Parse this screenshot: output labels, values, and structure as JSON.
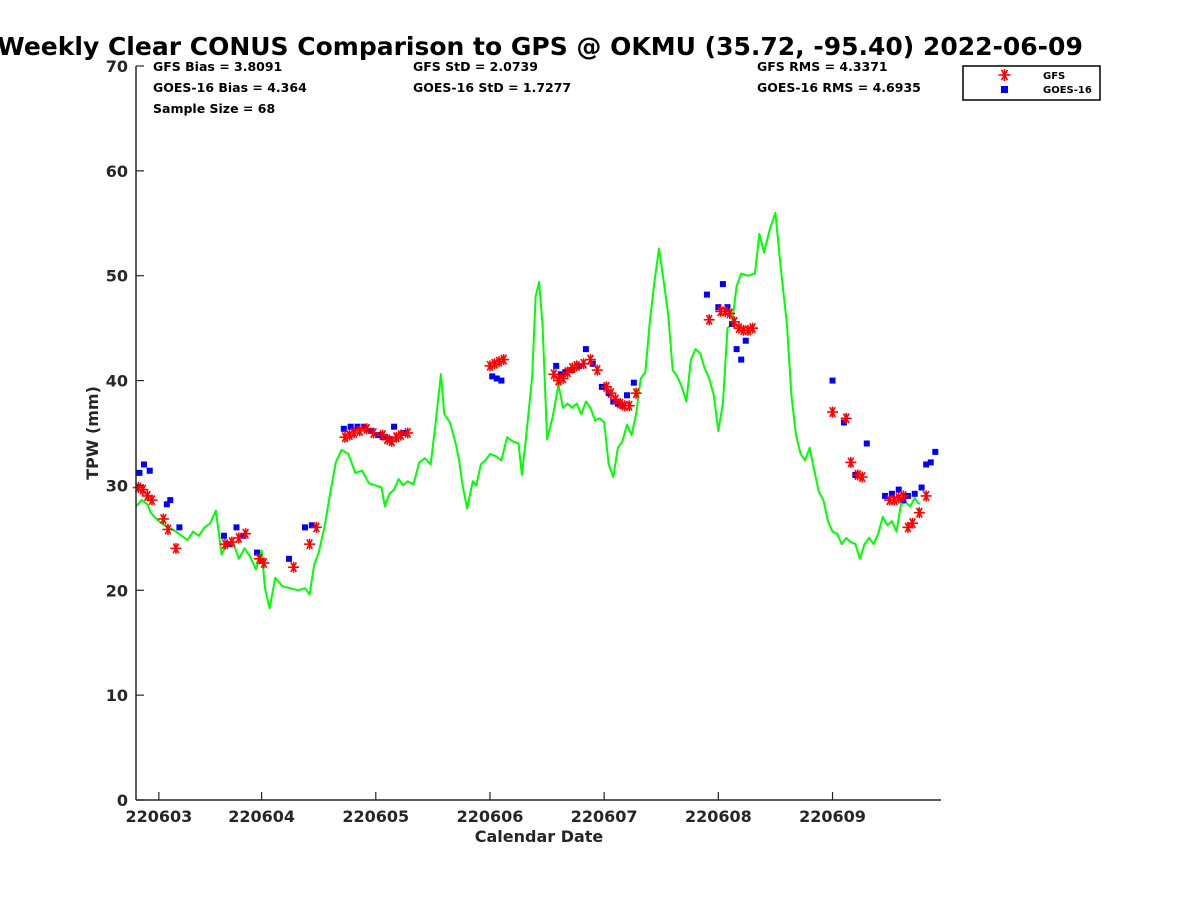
{
  "chart_data": {
    "type": "line",
    "title": "Weekly Clear CONUS Comparison to GPS @ OKMU (35.72, -95.40) 2022-06-09",
    "xlabel": "Calendar Date",
    "ylabel": "TPW (mm)",
    "ylim": [
      0,
      70
    ],
    "y_ticks": [
      0,
      10,
      20,
      30,
      40,
      50,
      60,
      70
    ],
    "x_ticks": [
      {
        "x": 0.1,
        "label": "220603"
      },
      {
        "x": 1.0,
        "label": "220604"
      },
      {
        "x": 2.0,
        "label": "220605"
      },
      {
        "x": 3.0,
        "label": "220606"
      },
      {
        "x": 4.0,
        "label": "220607"
      },
      {
        "x": 5.0,
        "label": "220608"
      },
      {
        "x": 6.0,
        "label": "220609"
      }
    ],
    "xlim": [
      -0.1,
      6.95
    ],
    "grid": false,
    "legend_placement": "top-right",
    "stats": {
      "gfs_bias": "GFS Bias = 3.8091",
      "goes_bias": "GOES-16 Bias = 4.364",
      "sample_size": "Sample Size = 68",
      "gfs_std": "GFS StD = 2.0739",
      "goes_std": "GOES-16 StD = 1.7277",
      "gfs_rms": "GFS RMS = 4.3371",
      "goes_rms": "GOES-16 RMS = 4.6935"
    },
    "legend": [
      {
        "name": "GFS",
        "marker": "asterisk",
        "color": "#ff0000"
      },
      {
        "name": "GOES-16",
        "marker": "square",
        "color": "#0000ff"
      }
    ],
    "series": [
      {
        "name": "GPS",
        "color": "#00ff00",
        "points": [
          [
            -0.1,
            28
          ],
          [
            -0.05,
            28.6
          ],
          [
            0.0,
            28.2
          ],
          [
            0.03,
            27.4
          ],
          [
            0.06,
            27.0
          ],
          [
            0.1,
            26.6
          ],
          [
            0.15,
            26.2
          ],
          [
            0.2,
            25.9
          ],
          [
            0.25,
            25.6
          ],
          [
            0.3,
            25.2
          ],
          [
            0.35,
            24.8
          ],
          [
            0.4,
            25.6
          ],
          [
            0.45,
            25.2
          ],
          [
            0.5,
            26.0
          ],
          [
            0.55,
            26.4
          ],
          [
            0.6,
            27.6
          ],
          [
            0.65,
            23.4
          ],
          [
            0.7,
            24.5
          ],
          [
            0.75,
            24.6
          ],
          [
            0.8,
            23.0
          ],
          [
            0.85,
            24.0
          ],
          [
            0.9,
            23.2
          ],
          [
            0.95,
            22.0
          ],
          [
            1.0,
            23.8
          ],
          [
            1.03,
            20.2
          ],
          [
            1.07,
            18.3
          ],
          [
            1.12,
            21.2
          ],
          [
            1.18,
            20.4
          ],
          [
            1.25,
            20.2
          ],
          [
            1.32,
            20.0
          ],
          [
            1.38,
            20.2
          ],
          [
            1.42,
            19.6
          ],
          [
            1.46,
            22.4
          ],
          [
            1.5,
            23.6
          ],
          [
            1.55,
            26.0
          ],
          [
            1.6,
            29.2
          ],
          [
            1.65,
            32.2
          ],
          [
            1.7,
            33.4
          ],
          [
            1.76,
            33.0
          ],
          [
            1.82,
            31.2
          ],
          [
            1.88,
            31.4
          ],
          [
            1.94,
            30.2
          ],
          [
            2.0,
            30.0
          ],
          [
            2.05,
            29.8
          ],
          [
            2.08,
            28.0
          ],
          [
            2.12,
            29.2
          ],
          [
            2.16,
            29.6
          ],
          [
            2.2,
            30.6
          ],
          [
            2.24,
            30.0
          ],
          [
            2.28,
            30.4
          ],
          [
            2.33,
            30.1
          ],
          [
            2.38,
            32.2
          ],
          [
            2.43,
            32.6
          ],
          [
            2.48,
            32.0
          ],
          [
            2.52,
            35.6
          ],
          [
            2.57,
            40.6
          ],
          [
            2.6,
            36.8
          ],
          [
            2.65,
            36.0
          ],
          [
            2.7,
            34.0
          ],
          [
            2.73,
            32.4
          ],
          [
            2.76,
            30.0
          ],
          [
            2.8,
            27.8
          ],
          [
            2.85,
            30.4
          ],
          [
            2.88,
            30.0
          ],
          [
            2.92,
            32.0
          ],
          [
            2.96,
            32.4
          ],
          [
            3.0,
            33.0
          ],
          [
            3.05,
            32.8
          ],
          [
            3.1,
            32.4
          ],
          [
            3.15,
            34.6
          ],
          [
            3.2,
            34.2
          ],
          [
            3.25,
            34.0
          ],
          [
            3.28,
            31.0
          ],
          [
            3.32,
            35.0
          ],
          [
            3.37,
            40.4
          ],
          [
            3.4,
            48.0
          ],
          [
            3.43,
            49.4
          ],
          [
            3.46,
            45.4
          ],
          [
            3.5,
            34.4
          ],
          [
            3.55,
            36.6
          ],
          [
            3.6,
            39.6
          ],
          [
            3.64,
            37.4
          ],
          [
            3.68,
            37.8
          ],
          [
            3.72,
            37.4
          ],
          [
            3.76,
            37.8
          ],
          [
            3.8,
            36.8
          ],
          [
            3.84,
            38.0
          ],
          [
            3.88,
            37.4
          ],
          [
            3.92,
            36.2
          ],
          [
            3.96,
            36.4
          ],
          [
            4.0,
            36.0
          ],
          [
            4.04,
            32.0
          ],
          [
            4.08,
            30.8
          ],
          [
            4.12,
            33.6
          ],
          [
            4.16,
            34.2
          ],
          [
            4.2,
            35.8
          ],
          [
            4.24,
            34.8
          ],
          [
            4.28,
            36.8
          ],
          [
            4.32,
            40.2
          ],
          [
            4.36,
            40.8
          ],
          [
            4.4,
            45.6
          ],
          [
            4.44,
            49.4
          ],
          [
            4.48,
            52.6
          ],
          [
            4.52,
            49.6
          ],
          [
            4.56,
            46.4
          ],
          [
            4.6,
            41.0
          ],
          [
            4.64,
            40.4
          ],
          [
            4.68,
            39.4
          ],
          [
            4.72,
            38.0
          ],
          [
            4.76,
            42.0
          ],
          [
            4.8,
            43.0
          ],
          [
            4.84,
            42.6
          ],
          [
            4.88,
            41.2
          ],
          [
            4.92,
            40.2
          ],
          [
            4.96,
            38.6
          ],
          [
            5.0,
            35.2
          ],
          [
            5.04,
            37.8
          ],
          [
            5.08,
            45.0
          ],
          [
            5.12,
            45.4
          ],
          [
            5.16,
            49.0
          ],
          [
            5.2,
            50.2
          ],
          [
            5.26,
            50.0
          ],
          [
            5.32,
            50.2
          ],
          [
            5.36,
            54.0
          ],
          [
            5.4,
            52.2
          ],
          [
            5.45,
            54.4
          ],
          [
            5.5,
            56.0
          ],
          [
            5.55,
            50.4
          ],
          [
            5.6,
            45.4
          ],
          [
            5.64,
            38.6
          ],
          [
            5.68,
            34.8
          ],
          [
            5.72,
            33.0
          ],
          [
            5.76,
            32.4
          ],
          [
            5.8,
            33.6
          ],
          [
            5.84,
            31.4
          ],
          [
            5.88,
            29.4
          ],
          [
            5.92,
            28.6
          ],
          [
            5.96,
            26.6
          ],
          [
            6.0,
            25.6
          ],
          [
            6.04,
            25.4
          ],
          [
            6.08,
            24.4
          ],
          [
            6.12,
            25.0
          ],
          [
            6.16,
            24.6
          ],
          [
            6.2,
            24.4
          ],
          [
            6.24,
            23.0
          ],
          [
            6.28,
            24.4
          ],
          [
            6.32,
            25.0
          ],
          [
            6.36,
            24.4
          ],
          [
            6.4,
            25.4
          ],
          [
            6.44,
            27.0
          ],
          [
            6.48,
            26.2
          ],
          [
            6.52,
            26.6
          ],
          [
            6.56,
            25.6
          ],
          [
            6.6,
            28.2
          ],
          [
            6.64,
            28.4
          ],
          [
            6.68,
            28.0
          ],
          [
            6.72,
            28.8
          ],
          [
            6.76,
            28.2
          ]
        ]
      },
      {
        "name": "GFS",
        "marker": "asterisk",
        "color": "#ff0000",
        "points": [
          [
            -0.08,
            29.8
          ],
          [
            -0.04,
            29.6
          ],
          [
            0.0,
            29.0
          ],
          [
            0.04,
            28.6
          ],
          [
            0.14,
            26.8
          ],
          [
            0.18,
            25.8
          ],
          [
            0.25,
            24.0
          ],
          [
            0.68,
            24.4
          ],
          [
            0.74,
            24.6
          ],
          [
            0.8,
            25.0
          ],
          [
            0.86,
            25.4
          ],
          [
            0.98,
            23.0
          ],
          [
            1.02,
            22.6
          ],
          [
            1.28,
            22.2
          ],
          [
            1.42,
            24.4
          ],
          [
            1.48,
            26.0
          ],
          [
            1.73,
            34.6
          ],
          [
            1.77,
            34.8
          ],
          [
            1.81,
            35.0
          ],
          [
            1.86,
            35.2
          ],
          [
            1.92,
            35.4
          ],
          [
            1.98,
            35.0
          ],
          [
            2.06,
            34.8
          ],
          [
            2.1,
            34.4
          ],
          [
            2.14,
            34.2
          ],
          [
            2.18,
            34.6
          ],
          [
            2.22,
            34.8
          ],
          [
            2.28,
            35.0
          ],
          [
            3.0,
            41.4
          ],
          [
            3.04,
            41.6
          ],
          [
            3.08,
            41.8
          ],
          [
            3.12,
            42.0
          ],
          [
            3.56,
            40.6
          ],
          [
            3.6,
            40.0
          ],
          [
            3.64,
            40.2
          ],
          [
            3.68,
            40.8
          ],
          [
            3.72,
            41.2
          ],
          [
            3.76,
            41.4
          ],
          [
            3.82,
            41.6
          ],
          [
            3.88,
            42.0
          ],
          [
            3.94,
            41.0
          ],
          [
            4.02,
            39.4
          ],
          [
            4.06,
            38.8
          ],
          [
            4.1,
            38.2
          ],
          [
            4.14,
            37.8
          ],
          [
            4.18,
            37.6
          ],
          [
            4.22,
            37.6
          ],
          [
            4.28,
            38.8
          ],
          [
            4.92,
            45.8
          ],
          [
            5.02,
            46.6
          ],
          [
            5.06,
            46.6
          ],
          [
            5.1,
            46.4
          ],
          [
            5.14,
            45.6
          ],
          [
            5.18,
            45.0
          ],
          [
            5.22,
            44.8
          ],
          [
            5.26,
            44.8
          ],
          [
            5.3,
            45.0
          ],
          [
            6.0,
            37.0
          ],
          [
            6.12,
            36.4
          ],
          [
            6.16,
            32.2
          ],
          [
            6.22,
            31.0
          ],
          [
            6.26,
            30.8
          ],
          [
            6.5,
            28.6
          ],
          [
            6.54,
            28.6
          ],
          [
            6.58,
            28.8
          ],
          [
            6.62,
            29.0
          ],
          [
            6.66,
            26.0
          ],
          [
            6.7,
            26.4
          ],
          [
            6.76,
            27.4
          ],
          [
            6.82,
            29.0
          ]
        ]
      },
      {
        "name": "GOES-16",
        "marker": "square",
        "color": "#0000ff",
        "points": [
          [
            -0.07,
            31.2
          ],
          [
            -0.03,
            32.0
          ],
          [
            0.02,
            31.4
          ],
          [
            0.17,
            28.2
          ],
          [
            0.2,
            28.6
          ],
          [
            0.28,
            26.0
          ],
          [
            0.67,
            25.2
          ],
          [
            0.72,
            24.4
          ],
          [
            0.78,
            26.0
          ],
          [
            0.84,
            25.2
          ],
          [
            0.96,
            23.6
          ],
          [
            1.0,
            22.8
          ],
          [
            1.24,
            23.0
          ],
          [
            1.38,
            26.0
          ],
          [
            1.44,
            26.2
          ],
          [
            1.72,
            35.4
          ],
          [
            1.78,
            35.6
          ],
          [
            1.84,
            35.6
          ],
          [
            1.9,
            35.6
          ],
          [
            1.96,
            35.2
          ],
          [
            2.02,
            34.8
          ],
          [
            2.07,
            34.6
          ],
          [
            2.12,
            34.4
          ],
          [
            2.16,
            35.6
          ],
          [
            2.24,
            35.0
          ],
          [
            3.02,
            40.4
          ],
          [
            3.06,
            40.2
          ],
          [
            3.1,
            40.0
          ],
          [
            3.58,
            41.4
          ],
          [
            3.62,
            40.6
          ],
          [
            3.66,
            40.8
          ],
          [
            3.72,
            41.0
          ],
          [
            3.78,
            41.4
          ],
          [
            3.84,
            43.0
          ],
          [
            3.9,
            41.6
          ],
          [
            3.98,
            39.4
          ],
          [
            4.04,
            38.8
          ],
          [
            4.08,
            38.0
          ],
          [
            4.12,
            37.8
          ],
          [
            4.16,
            37.6
          ],
          [
            4.2,
            38.6
          ],
          [
            4.26,
            39.8
          ],
          [
            4.9,
            48.2
          ],
          [
            5.0,
            47.0
          ],
          [
            5.04,
            49.2
          ],
          [
            5.08,
            47.0
          ],
          [
            5.12,
            45.4
          ],
          [
            5.16,
            43.0
          ],
          [
            5.2,
            42.0
          ],
          [
            5.24,
            43.8
          ],
          [
            6.0,
            40.0
          ],
          [
            6.1,
            36.0
          ],
          [
            6.2,
            31.0
          ],
          [
            6.3,
            34.0
          ],
          [
            6.46,
            29.0
          ],
          [
            6.52,
            29.2
          ],
          [
            6.58,
            29.6
          ],
          [
            6.62,
            28.6
          ],
          [
            6.66,
            29.0
          ],
          [
            6.72,
            29.2
          ],
          [
            6.78,
            29.8
          ],
          [
            6.82,
            32.0
          ],
          [
            6.86,
            32.2
          ],
          [
            6.9,
            33.2
          ]
        ]
      }
    ]
  }
}
